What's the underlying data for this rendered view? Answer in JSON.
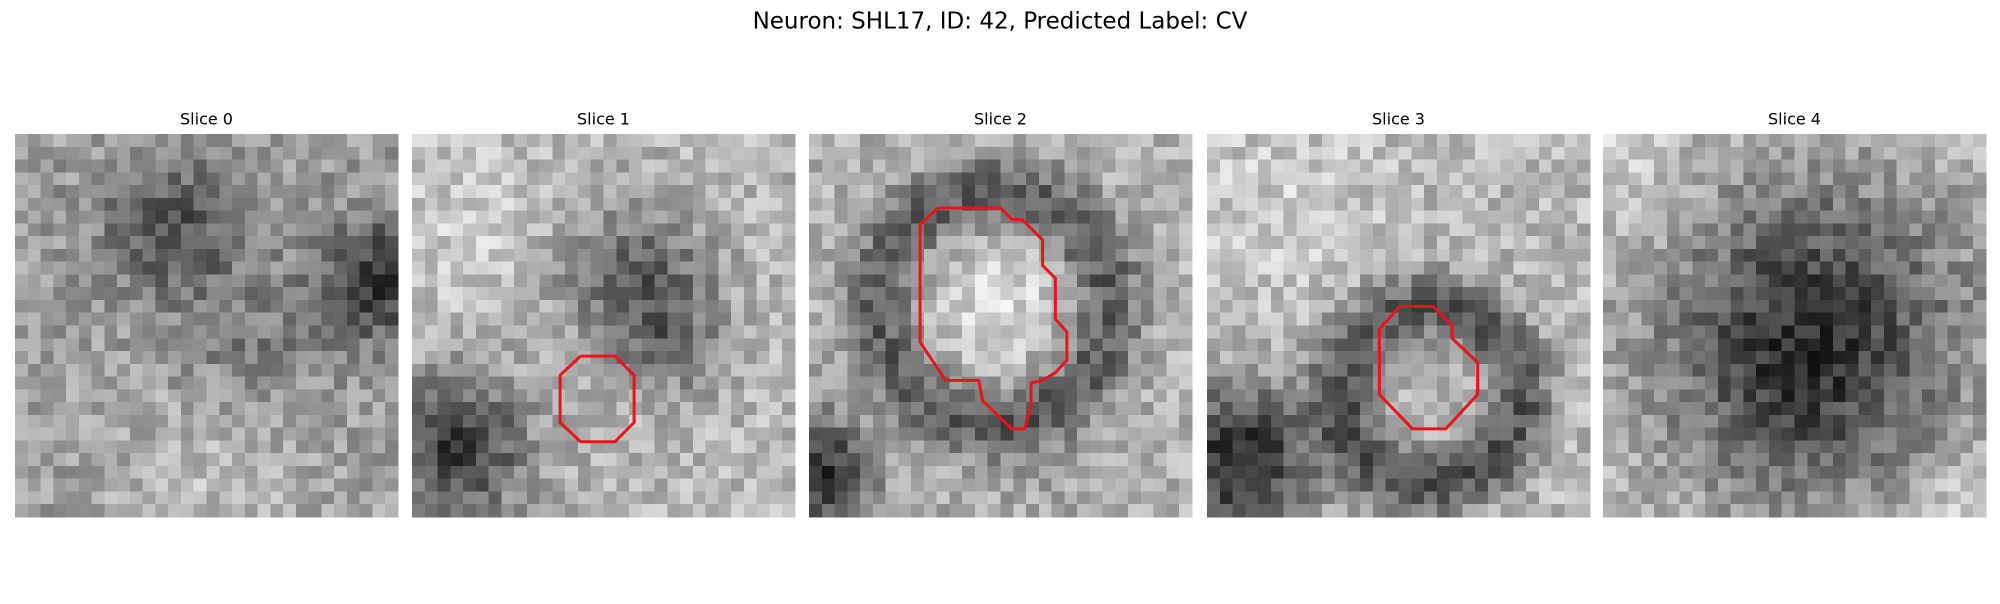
{
  "title": "Neuron: SHL17, ID: 42, Predicted Label: CV",
  "panels": [
    {
      "title": "Slice 0"
    },
    {
      "title": "Slice 1"
    },
    {
      "title": "Slice 2"
    },
    {
      "title": "Slice 3"
    },
    {
      "title": "Slice 4"
    }
  ]
}
